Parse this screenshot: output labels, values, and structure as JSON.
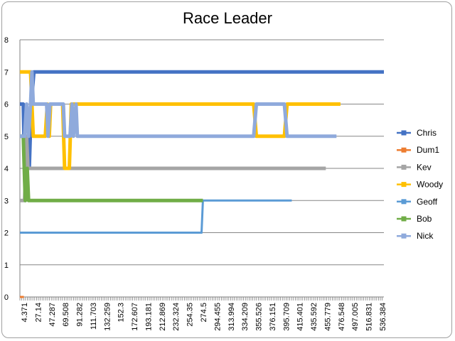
{
  "chart_data": {
    "type": "line",
    "title": "Race Leader",
    "ylim": [
      0,
      8
    ],
    "y_ticks": [
      "0",
      "1",
      "2",
      "3",
      "4",
      "5",
      "6",
      "7",
      "8"
    ],
    "x_tick_labels": [
      "4.371",
      "27.14",
      "47.287",
      "69.508",
      "91.282",
      "111.703",
      "132.259",
      "152.3",
      "172.607",
      "193.181",
      "212.869",
      "232.324",
      "254.35",
      "274.5",
      "294.455",
      "313.994",
      "334.209",
      "355.526",
      "376.151",
      "395.709",
      "415.401",
      "435.592",
      "455.779",
      "476.548",
      "497.005",
      "516.831",
      "536.384"
    ],
    "xlim": [
      0,
      545
    ],
    "grid": true,
    "legend_position": "right",
    "series": [
      {
        "name": "Chris",
        "color": "#4472C4",
        "width": 5,
        "points": [
          [
            0,
            6
          ],
          [
            5,
            6
          ],
          [
            8,
            3
          ],
          [
            11,
            5
          ],
          [
            14,
            4
          ],
          [
            17,
            6
          ],
          [
            21,
            7
          ],
          [
            545,
            7
          ]
        ]
      },
      {
        "name": "Dum1",
        "color": "#ED7D31",
        "width": 3,
        "points": [
          [
            0,
            0
          ],
          [
            6,
            0
          ]
        ]
      },
      {
        "name": "Kev",
        "color": "#A5A5A5",
        "width": 5,
        "points": [
          [
            0,
            3
          ],
          [
            7,
            3
          ],
          [
            10,
            5
          ],
          [
            12,
            4
          ],
          [
            458,
            4
          ]
        ]
      },
      {
        "name": "Woody",
        "color": "#FFC000",
        "width": 5,
        "points": [
          [
            0,
            7
          ],
          [
            16,
            7
          ],
          [
            20,
            5
          ],
          [
            38,
            5
          ],
          [
            41,
            6
          ],
          [
            44,
            5
          ],
          [
            46,
            6
          ],
          [
            50,
            6
          ],
          [
            64,
            6
          ],
          [
            67,
            4
          ],
          [
            74,
            4
          ],
          [
            77,
            6
          ],
          [
            350,
            6
          ],
          [
            354,
            5
          ],
          [
            396,
            5
          ],
          [
            400,
            6
          ],
          [
            480,
            6
          ]
        ]
      },
      {
        "name": "Geoff",
        "color": "#5B9BD5",
        "width": 3,
        "points": [
          [
            0,
            2
          ],
          [
            272,
            2
          ],
          [
            274,
            3
          ],
          [
            407,
            3
          ]
        ]
      },
      {
        "name": "Bob",
        "color": "#70AD47",
        "width": 5,
        "points": [
          [
            0,
            5
          ],
          [
            5,
            5
          ],
          [
            8,
            3
          ],
          [
            11,
            4
          ],
          [
            13,
            3
          ],
          [
            274,
            3
          ]
        ]
      },
      {
        "name": "Nick",
        "color": "#8FAADC",
        "width": 5,
        "points": [
          [
            0,
            5
          ],
          [
            7,
            5
          ],
          [
            10,
            6
          ],
          [
            13,
            5
          ],
          [
            16,
            6
          ],
          [
            18,
            7
          ],
          [
            20,
            6
          ],
          [
            40,
            6
          ],
          [
            42,
            5
          ],
          [
            45,
            6
          ],
          [
            65,
            6
          ],
          [
            67,
            5
          ],
          [
            75,
            5
          ],
          [
            78,
            6
          ],
          [
            80,
            5
          ],
          [
            84,
            6
          ],
          [
            86,
            5
          ],
          [
            350,
            5
          ],
          [
            354,
            6
          ],
          [
            396,
            6
          ],
          [
            400,
            5
          ],
          [
            474,
            5
          ]
        ]
      }
    ]
  }
}
